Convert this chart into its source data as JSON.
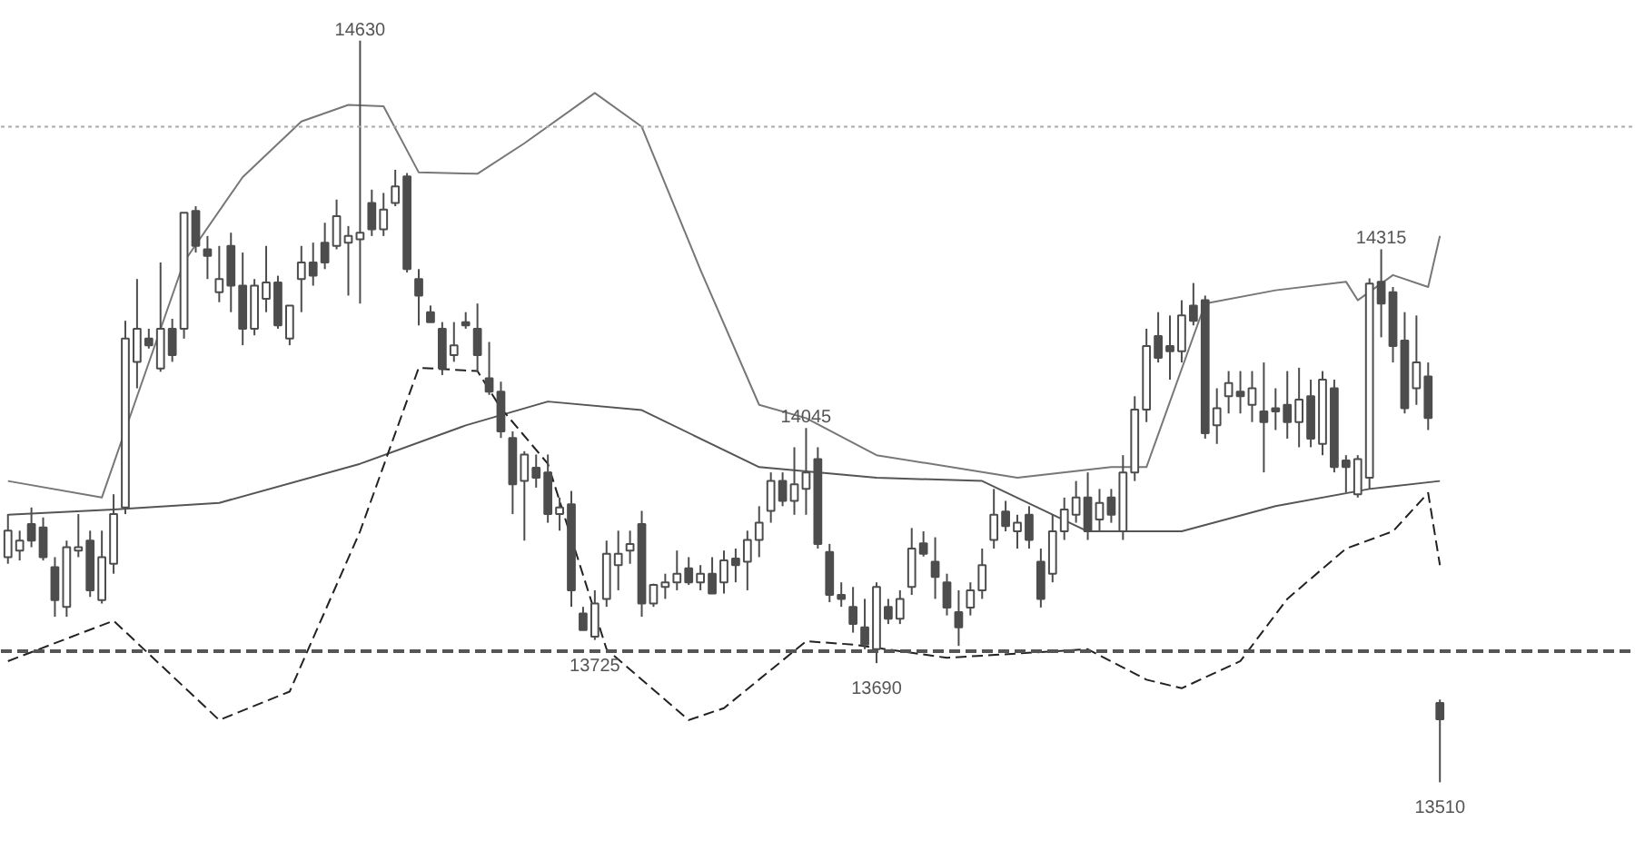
{
  "chart_data": {
    "type": "candlestick",
    "color": "#4d4d4d",
    "ylim": [
      13420,
      14690
    ],
    "tick_labels": false,
    "grid": false,
    "categories": [
      null,
      null,
      null,
      null,
      null,
      null,
      null,
      null,
      null,
      null,
      null,
      null,
      null,
      null,
      null,
      null,
      null,
      null,
      null,
      null,
      null,
      null,
      null,
      null,
      null,
      null,
      null,
      null,
      null,
      null,
      null,
      null,
      null,
      null,
      null,
      null,
      null,
      null,
      null,
      null,
      null,
      null,
      null,
      null,
      null,
      null,
      null,
      null,
      null,
      null,
      null,
      null,
      null,
      null,
      null,
      null,
      null,
      null,
      null,
      null,
      null,
      null,
      null,
      null,
      null,
      null,
      null,
      null,
      null,
      null,
      null,
      null,
      null,
      null,
      null,
      null,
      null,
      null,
      null,
      null,
      null,
      null,
      null,
      null,
      null,
      null,
      null,
      null,
      null,
      null,
      null,
      null,
      null,
      null,
      null,
      null,
      null,
      null,
      null,
      null,
      null,
      null,
      null,
      null,
      null,
      null,
      null,
      null,
      null,
      null,
      null,
      null,
      null,
      null,
      null,
      null,
      null,
      null,
      null,
      null,
      null,
      null,
      null
    ],
    "ohlc": [
      [
        13850,
        13915,
        13840,
        13890
      ],
      [
        13860,
        13890,
        13845,
        13875
      ],
      [
        13900,
        13925,
        13865,
        13875
      ],
      [
        13895,
        13910,
        13845,
        13850
      ],
      [
        13835,
        13850,
        13760,
        13785
      ],
      [
        13775,
        13875,
        13760,
        13865
      ],
      [
        13860,
        13915,
        13850,
        13865
      ],
      [
        13875,
        13890,
        13790,
        13800
      ],
      [
        13785,
        13890,
        13780,
        13850
      ],
      [
        13840,
        13945,
        13825,
        13915
      ],
      [
        13925,
        14207,
        13915,
        14180
      ],
      [
        14145,
        14270,
        14105,
        14195
      ],
      [
        14180,
        14195,
        14165,
        14170
      ],
      [
        14135,
        14295,
        14130,
        14195
      ],
      [
        14195,
        14210,
        14145,
        14155
      ],
      [
        14195,
        14370,
        14180,
        14370
      ],
      [
        14373,
        14380,
        14310,
        14320
      ],
      [
        14315,
        14335,
        14270,
        14305
      ],
      [
        14250,
        14320,
        14235,
        14270
      ],
      [
        14320,
        14340,
        14220,
        14260
      ],
      [
        14260,
        14310,
        14170,
        14195
      ],
      [
        14195,
        14270,
        14185,
        14260
      ],
      [
        14240,
        14320,
        14220,
        14265
      ],
      [
        14265,
        14275,
        14195,
        14200
      ],
      [
        14180,
        14230,
        14170,
        14230
      ],
      [
        14270,
        14320,
        14220,
        14295
      ],
      [
        14295,
        14325,
        14260,
        14275
      ],
      [
        14325,
        14355,
        14285,
        14295
      ],
      [
        14320,
        14390,
        14315,
        14365
      ],
      [
        14325,
        14350,
        14245,
        14335
      ],
      [
        14330,
        14630,
        14233,
        14340
      ],
      [
        14385,
        14405,
        14335,
        14345
      ],
      [
        14345,
        14400,
        14335,
        14375
      ],
      [
        14385,
        14435,
        14380,
        14410
      ],
      [
        14425,
        14430,
        14280,
        14285
      ],
      [
        14270,
        14285,
        14200,
        14245
      ],
      [
        14220,
        14230,
        14205,
        14205
      ],
      [
        14195,
        14205,
        14125,
        14135
      ],
      [
        14155,
        14205,
        14145,
        14170
      ],
      [
        14205,
        14220,
        14195,
        14200
      ],
      [
        14195,
        14233,
        14130,
        14155
      ],
      [
        14120,
        14175,
        14095,
        14100
      ],
      [
        14100,
        14115,
        14030,
        14040
      ],
      [
        14030,
        14040,
        13915,
        13960
      ],
      [
        13965,
        14010,
        13875,
        14005
      ],
      [
        13985,
        14005,
        13955,
        13970
      ],
      [
        13978,
        14005,
        13902,
        13915
      ],
      [
        13915,
        13940,
        13890,
        13925
      ],
      [
        13930,
        13950,
        13775,
        13800
      ],
      [
        13765,
        13775,
        13740,
        13740
      ],
      [
        13730,
        13800,
        13725,
        13780
      ],
      [
        13787,
        13875,
        13775,
        13855
      ],
      [
        13838,
        13890,
        13800,
        13855
      ],
      [
        13860,
        13890,
        13840,
        13870
      ],
      [
        13900,
        13920,
        13760,
        13780
      ],
      [
        13780,
        13810,
        13775,
        13808
      ],
      [
        13805,
        13825,
        13787,
        13812
      ],
      [
        13812,
        13860,
        13800,
        13825
      ],
      [
        13833,
        13850,
        13808,
        13812
      ],
      [
        13812,
        13838,
        13800,
        13825
      ],
      [
        13825,
        13850,
        13795,
        13795
      ],
      [
        13812,
        13860,
        13795,
        13845
      ],
      [
        13848,
        13863,
        13812,
        13838
      ],
      [
        13843,
        13890,
        13800,
        13876
      ],
      [
        13876,
        13927,
        13850,
        13902
      ],
      [
        13920,
        13978,
        13902,
        13965
      ],
      [
        13965,
        13978,
        13927,
        13935
      ],
      [
        13935,
        14016,
        13914,
        13960
      ],
      [
        13953,
        14045,
        13914,
        13978
      ],
      [
        13998,
        14016,
        13863,
        13870
      ],
      [
        13858,
        13870,
        13782,
        13793
      ],
      [
        13793,
        13812,
        13775,
        13787
      ],
      [
        13775,
        13805,
        13736,
        13749
      ],
      [
        13744,
        13787,
        13711,
        13718
      ],
      [
        13711,
        13812,
        13690,
        13805
      ],
      [
        13775,
        13787,
        13749,
        13757
      ],
      [
        13757,
        13800,
        13749,
        13787
      ],
      [
        13805,
        13894,
        13793,
        13863
      ],
      [
        13871,
        13889,
        13851,
        13855
      ],
      [
        13843,
        13880,
        13787,
        13820
      ],
      [
        13812,
        13825,
        13762,
        13774
      ],
      [
        13767,
        13800,
        13716,
        13744
      ],
      [
        13774,
        13812,
        13762,
        13800
      ],
      [
        13800,
        13863,
        13787,
        13838
      ],
      [
        13876,
        13953,
        13863,
        13914
      ],
      [
        13919,
        13935,
        13889,
        13897
      ],
      [
        13889,
        13914,
        13863,
        13902
      ],
      [
        13914,
        13927,
        13863,
        13876
      ],
      [
        13843,
        13863,
        13774,
        13787
      ],
      [
        13825,
        13914,
        13812,
        13889
      ],
      [
        13889,
        13940,
        13876,
        13922
      ],
      [
        13914,
        13965,
        13902,
        13940
      ],
      [
        13940,
        13978,
        13876,
        13889
      ],
      [
        13907,
        13953,
        13889,
        13932
      ],
      [
        13940,
        13953,
        13902,
        13914
      ],
      [
        13889,
        14004,
        13876,
        13978
      ],
      [
        13978,
        14093,
        13965,
        14073
      ],
      [
        14073,
        14195,
        14054,
        14169
      ],
      [
        14184,
        14220,
        14144,
        14151
      ],
      [
        14169,
        14215,
        14118,
        14161
      ],
      [
        14161,
        14238,
        14144,
        14215
      ],
      [
        14230,
        14264,
        14200,
        14207
      ],
      [
        14238,
        14245,
        14029,
        14037
      ],
      [
        14049,
        14105,
        14021,
        14075
      ],
      [
        14093,
        14131,
        14067,
        14113
      ],
      [
        14100,
        14131,
        14067,
        14093
      ],
      [
        14080,
        14131,
        14054,
        14105
      ],
      [
        14070,
        14144,
        13978,
        14054
      ],
      [
        14075,
        14105,
        14042,
        14070
      ],
      [
        14080,
        14131,
        14029,
        14054
      ],
      [
        14054,
        14136,
        14016,
        14088
      ],
      [
        14093,
        14118,
        14016,
        14029
      ],
      [
        14021,
        14131,
        14004,
        14118
      ],
      [
        14105,
        14118,
        13978,
        13986
      ],
      [
        13996,
        14004,
        13948,
        13986
      ],
      [
        13945,
        14004,
        13940,
        13998
      ],
      [
        13970,
        14271,
        13953,
        14263
      ],
      [
        14266,
        14315,
        14182,
        14233
      ],
      [
        14250,
        14258,
        14144,
        14169
      ],
      [
        14177,
        14220,
        14067,
        14075
      ],
      [
        14105,
        14215,
        14080,
        14144
      ],
      [
        14123,
        14144,
        14042,
        14060
      ],
      [
        13630,
        13635,
        13510,
        13605
      ]
    ],
    "series": [
      {
        "type": "line",
        "color": "#777777",
        "line_style": "solid",
        "values": [
          13965,
          null,
          null,
          null,
          null,
          null,
          null,
          null,
          13940,
          null,
          14042,
          null,
          null,
          null,
          null,
          14296,
          null,
          null,
          null,
          null,
          14424,
          null,
          null,
          null,
          null,
          14508,
          null,
          null,
          null,
          14533,
          null,
          null,
          14531,
          null,
          null,
          14431,
          null,
          null,
          null,
          null,
          14429,
          null,
          null,
          null,
          14475,
          null,
          null,
          null,
          null,
          null,
          14551,
          null,
          null,
          null,
          14500,
          null,
          null,
          null,
          null,
          14284,
          null,
          null,
          null,
          null,
          14080,
          null,
          null,
          null,
          14060,
          null,
          null,
          null,
          null,
          null,
          14004,
          null,
          null,
          null,
          null,
          null,
          null,
          null,
          null,
          null,
          null,
          null,
          13970,
          null,
          null,
          null,
          null,
          null,
          null,
          null,
          13986,
          null,
          null,
          13986,
          null,
          null,
          null,
          null,
          14233,
          null,
          null,
          null,
          null,
          null,
          14253,
          null,
          null,
          null,
          null,
          null,
          14266,
          14238,
          null,
          null,
          14276,
          null,
          null,
          14258,
          14335
        ]
      },
      {
        "type": "line",
        "color": "#555555",
        "line_style": "solid",
        "values": [
          13914,
          null,
          null,
          null,
          null,
          null,
          null,
          null,
          null,
          13922,
          null,
          null,
          null,
          null,
          null,
          null,
          null,
          null,
          13932,
          null,
          null,
          null,
          null,
          null,
          null,
          null,
          null,
          null,
          null,
          null,
          13991,
          null,
          null,
          null,
          null,
          null,
          null,
          null,
          null,
          14049,
          null,
          null,
          null,
          null,
          null,
          null,
          14085,
          null,
          null,
          null,
          null,
          null,
          null,
          null,
          14072,
          null,
          null,
          null,
          null,
          null,
          null,
          null,
          null,
          null,
          13986,
          null,
          null,
          null,
          null,
          null,
          null,
          null,
          null,
          null,
          13970,
          null,
          null,
          null,
          null,
          null,
          null,
          null,
          null,
          13965,
          null,
          null,
          null,
          null,
          null,
          null,
          null,
          null,
          13889,
          null,
          null,
          null,
          null,
          null,
          null,
          null,
          13889,
          null,
          null,
          null,
          null,
          null,
          null,
          null,
          13927,
          null,
          null,
          null,
          null,
          null,
          null,
          null,
          13953,
          null,
          null,
          null,
          null,
          null,
          13965
        ]
      },
      {
        "type": "line",
        "color": "#222222",
        "line_style": "dashed",
        "values": [
          13693,
          null,
          null,
          null,
          null,
          null,
          null,
          null,
          null,
          13754,
          null,
          null,
          null,
          null,
          null,
          null,
          null,
          null,
          13604,
          null,
          null,
          null,
          null,
          null,
          13647,
          null,
          null,
          null,
          null,
          null,
          13889,
          null,
          null,
          null,
          null,
          14136,
          null,
          null,
          null,
          null,
          14131,
          null,
          14075,
          null,
          null,
          null,
          13991,
          null,
          null,
          null,
          null,
          13711,
          null,
          null,
          null,
          null,
          null,
          null,
          13604,
          null,
          null,
          13622,
          null,
          null,
          null,
          null,
          null,
          null,
          13723,
          null,
          null,
          null,
          13718,
          null,
          null,
          null,
          null,
          null,
          null,
          null,
          13698,
          null,
          null,
          null,
          null,
          null,
          null,
          null,
          null,
          null,
          null,
          null,
          13711,
          null,
          null,
          null,
          null,
          13665,
          null,
          null,
          13652,
          null,
          null,
          null,
          null,
          13693,
          null,
          null,
          null,
          13787,
          null,
          null,
          null,
          null,
          13863,
          null,
          null,
          null,
          13889,
          null,
          null,
          13947,
          13838
        ]
      }
    ],
    "ref_lines": [
      {
        "axis": "y",
        "value": 14500,
        "color": "#aaaaaa",
        "line_style": "dotted"
      },
      {
        "axis": "y",
        "value": 13708,
        "color": "#555555",
        "line_style": "dashed"
      }
    ],
    "annotations": [
      {
        "text": "14630",
        "y": 14630
      },
      {
        "text": "14045",
        "y": 14045
      },
      {
        "text": "13725",
        "y": 13725
      },
      {
        "text": "13690",
        "y": 13690
      },
      {
        "text": "14315",
        "y": 14315
      },
      {
        "text": "13510",
        "y": 13510
      }
    ]
  }
}
